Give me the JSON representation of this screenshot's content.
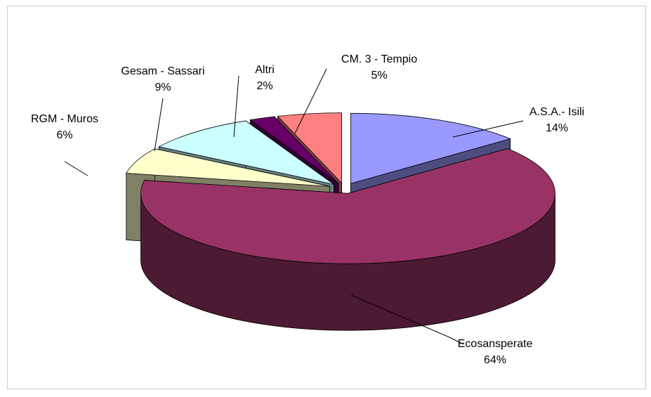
{
  "chart_data": {
    "type": "pie3d",
    "categories": [
      "A.S.A.- Isili",
      "Ecosansperate",
      "RGM - Muros",
      "Gesam - Sassari",
      "Altri",
      "CM. 3 - Tempio"
    ],
    "values": [
      14,
      64,
      6,
      9,
      2,
      5
    ],
    "value_labels": [
      "14%",
      "64%",
      "6%",
      "9%",
      "2%",
      "5%"
    ],
    "colors": [
      "#9999ff",
      "#993366",
      "#ffffcc",
      "#ccffff",
      "#660066",
      "#ff8080"
    ]
  }
}
